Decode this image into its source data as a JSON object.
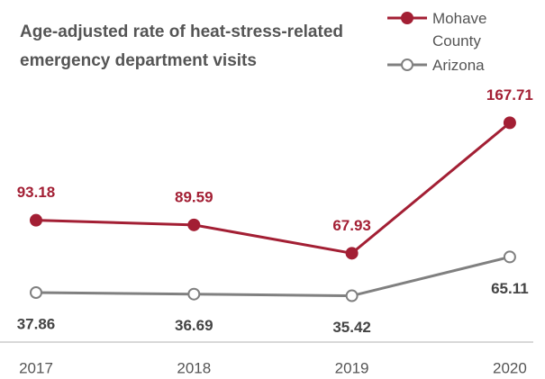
{
  "chart_data": {
    "type": "line",
    "title": "Age-adjusted rate of heat-stress-related emergency department visits",
    "categories": [
      "2017",
      "2018",
      "2019",
      "2020"
    ],
    "series": [
      {
        "name": "Mohave County",
        "color": "#a31f34",
        "values": [
          93.18,
          89.59,
          67.93,
          167.71
        ]
      },
      {
        "name": "Arizona",
        "color": "#808080",
        "values": [
          37.86,
          36.69,
          35.42,
          65.11
        ]
      }
    ],
    "ylim": [
      0,
      190
    ],
    "legend": "top-right"
  }
}
